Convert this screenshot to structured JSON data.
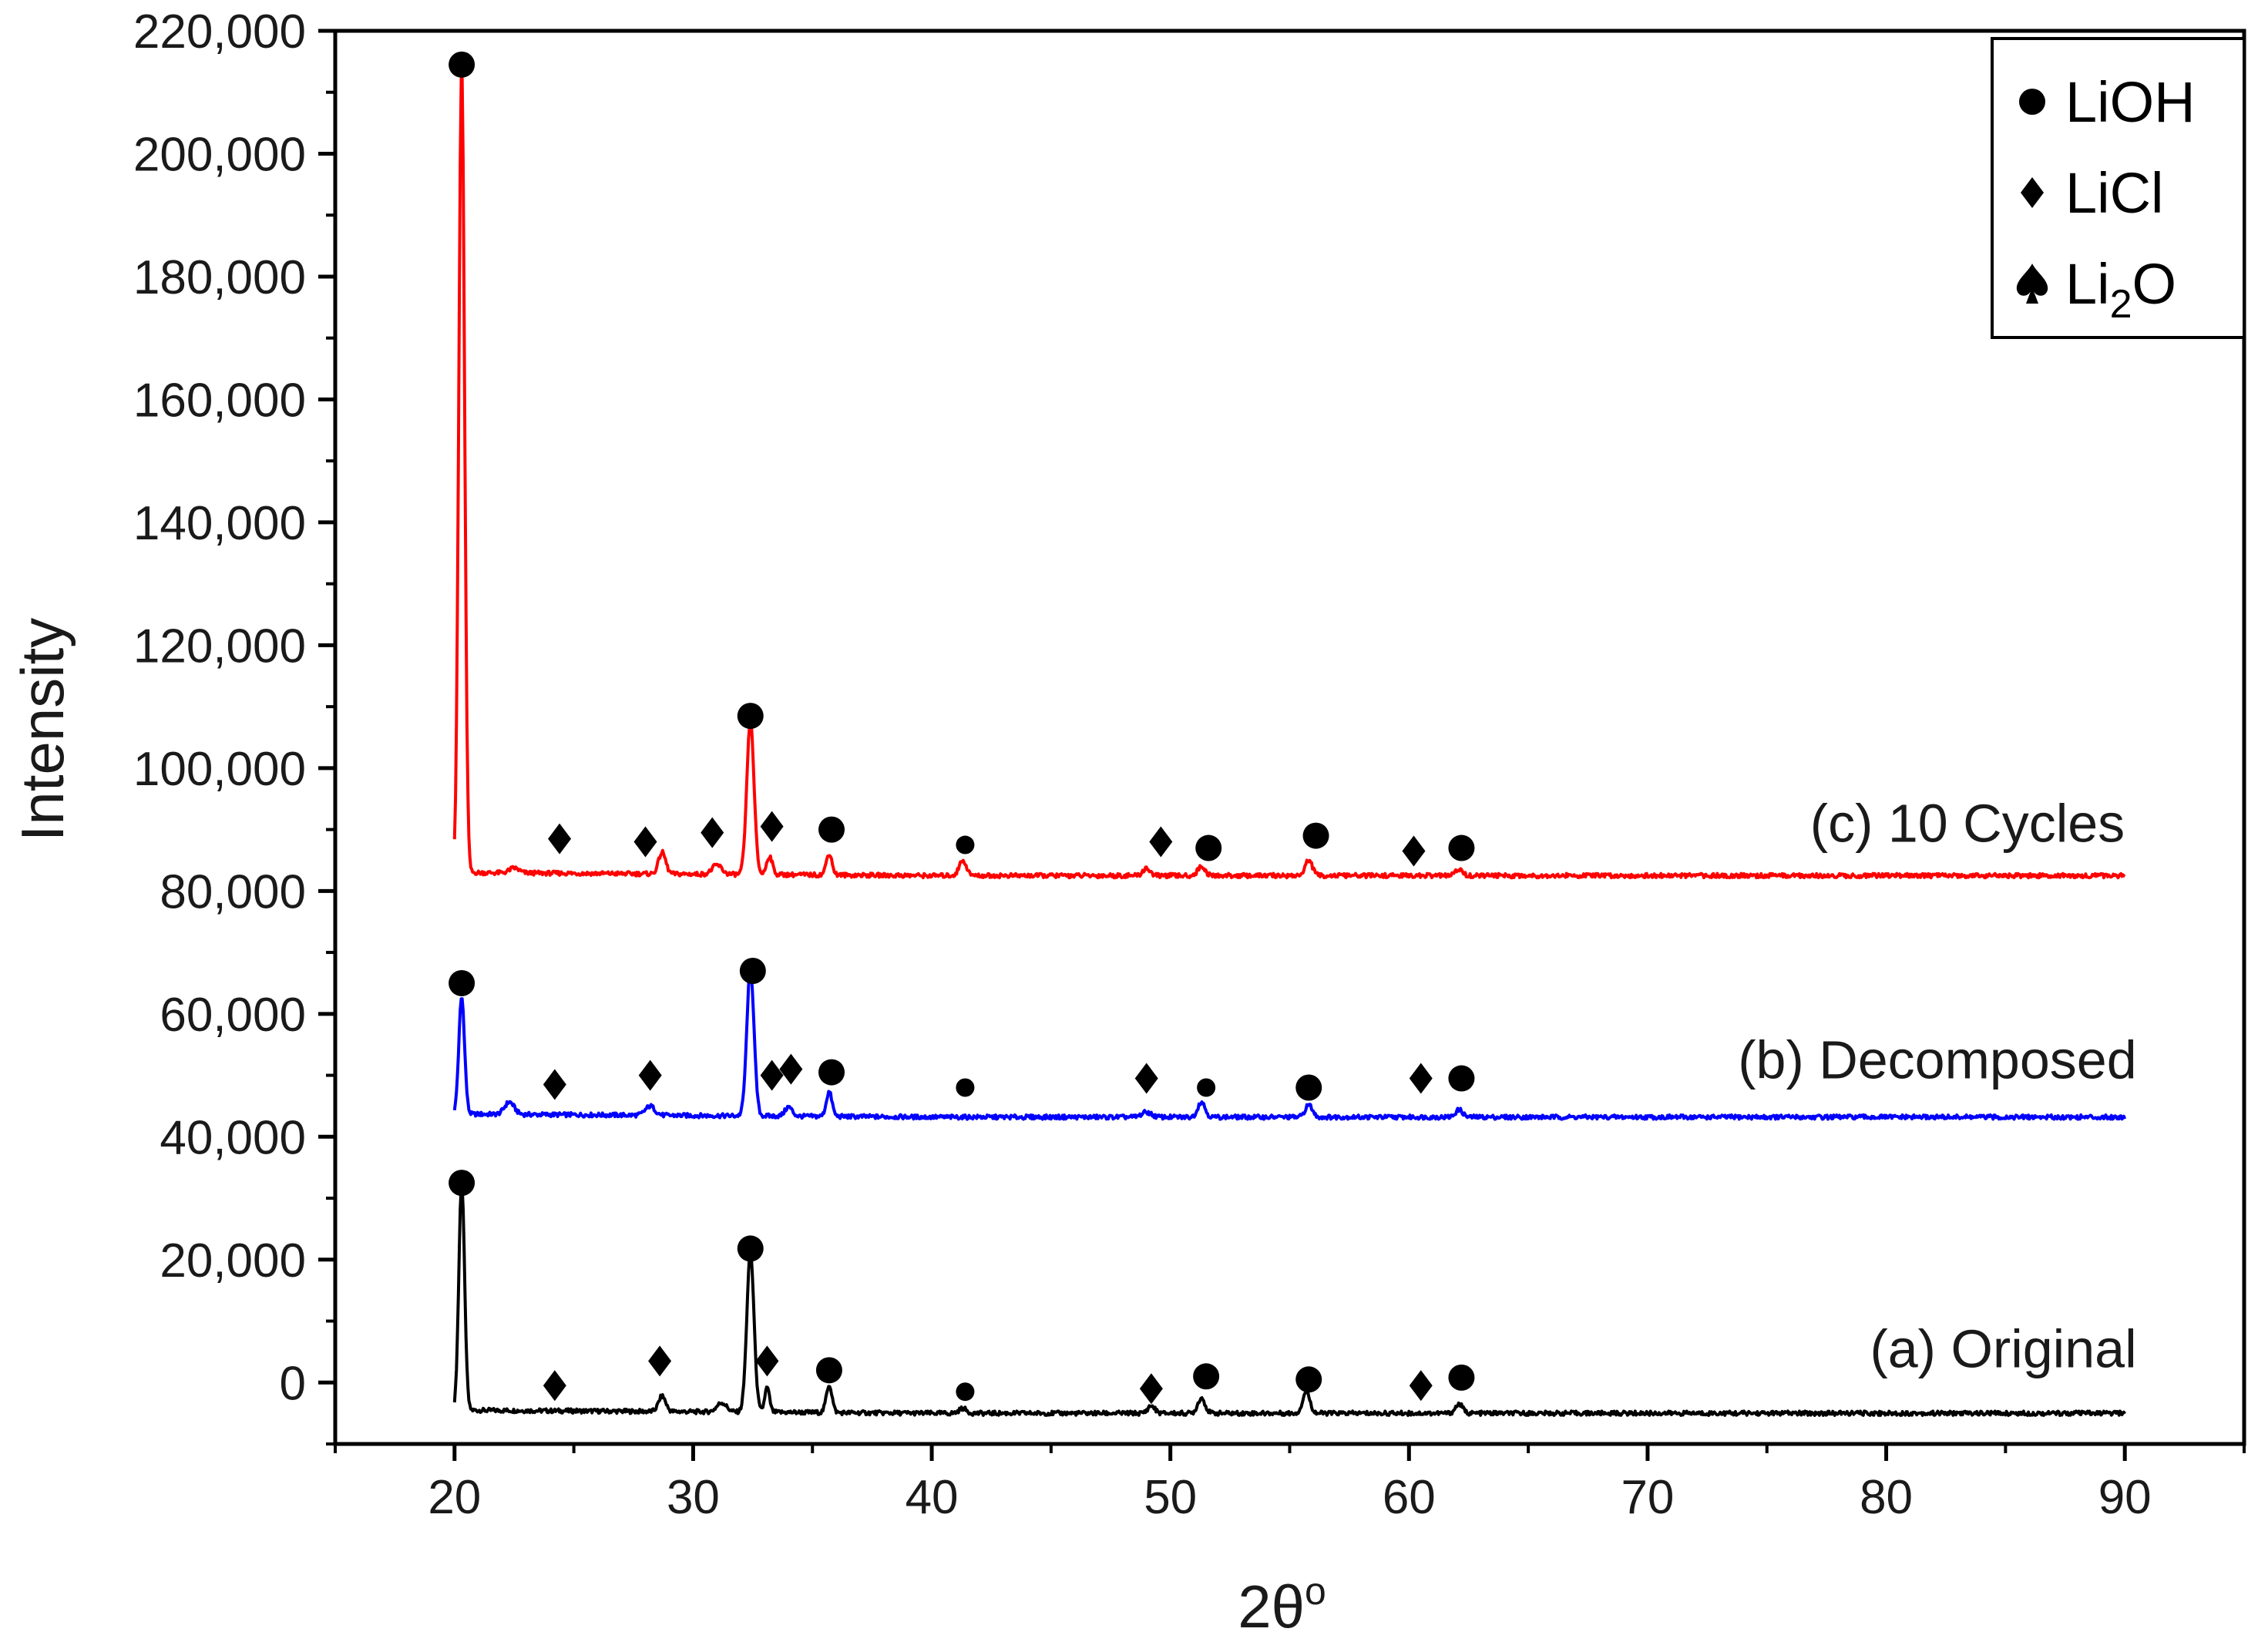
{
  "chart_data": {
    "type": "line",
    "title": "",
    "xlabel": "2θ",
    "xlabel_superscript": "o",
    "ylabel": "Intensity",
    "xlim": [
      15,
      95
    ],
    "ylim": [
      -10000,
      220000
    ],
    "x_ticks": [
      20,
      30,
      40,
      50,
      60,
      70,
      80,
      90
    ],
    "y_ticks": [
      0,
      20000,
      40000,
      60000,
      80000,
      100000,
      120000,
      140000,
      160000,
      180000,
      200000,
      220000
    ],
    "x_tick_labels": [
      "20",
      "30",
      "40",
      "50",
      "60",
      "70",
      "80",
      "90"
    ],
    "y_tick_labels": [
      "0",
      "20,000",
      "40,000",
      "60,000",
      "80,000",
      "100,000",
      "120,000",
      "140,000",
      "160,000",
      "180,000",
      "200,000",
      "220,000"
    ],
    "legend": [
      {
        "symbol": "circle",
        "label": "LiOH",
        "subscript": "",
        "suffix": ""
      },
      {
        "symbol": "diamond",
        "label": "LiCl",
        "subscript": "",
        "suffix": ""
      },
      {
        "symbol": "spade",
        "label": "Li",
        "subscript": "2",
        "suffix": "O"
      }
    ],
    "series": [
      {
        "name": "(a) Original",
        "color": "#000000",
        "baseline": -5000,
        "peaks": [
          [
            20.3,
            37000,
            0.12
          ],
          [
            28.7,
            2500,
            0.15
          ],
          [
            31.2,
            1500,
            0.2
          ],
          [
            32.4,
            26000,
            0.15
          ],
          [
            33.1,
            4000,
            0.1
          ],
          [
            35.7,
            4500,
            0.12
          ],
          [
            41.3,
            800,
            0.15
          ],
          [
            49.2,
            1200,
            0.15
          ],
          [
            51.3,
            2500,
            0.15
          ],
          [
            55.7,
            3500,
            0.15
          ],
          [
            62.1,
            1500,
            0.15
          ]
        ],
        "markers": [
          {
            "x": 20.3,
            "y": 32500,
            "symbol": "circle"
          },
          {
            "x": 24.2,
            "y": -500,
            "symbol": "diamond"
          },
          {
            "x": 28.6,
            "y": 3500,
            "symbol": "diamond"
          },
          {
            "x": 32.4,
            "y": 21800,
            "symbol": "circle"
          },
          {
            "x": 33.1,
            "y": 3500,
            "symbol": "diamond"
          },
          {
            "x": 35.7,
            "y": 2000,
            "symbol": "circle"
          },
          {
            "x": 41.4,
            "y": -1500,
            "symbol": "circle-small"
          },
          {
            "x": 49.2,
            "y": -1000,
            "symbol": "diamond"
          },
          {
            "x": 51.5,
            "y": 1000,
            "symbol": "circle"
          },
          {
            "x": 55.8,
            "y": 500,
            "symbol": "circle"
          },
          {
            "x": 60.5,
            "y": -500,
            "symbol": "diamond"
          },
          {
            "x": 62.2,
            "y": 800,
            "symbol": "circle"
          }
        ]
      },
      {
        "name": "(b) Decomposed",
        "color": "#0000ff",
        "baseline": 43200,
        "peaks": [
          [
            20.3,
            19000,
            0.12
          ],
          [
            22.3,
            2000,
            0.2
          ],
          [
            28.2,
            1500,
            0.2
          ],
          [
            32.4,
            24000,
            0.15
          ],
          [
            34.0,
            1500,
            0.15
          ],
          [
            35.7,
            4000,
            0.12
          ],
          [
            49.0,
            800,
            0.2
          ],
          [
            51.3,
            2500,
            0.15
          ],
          [
            55.8,
            2000,
            0.15
          ],
          [
            62.1,
            1200,
            0.15
          ]
        ],
        "markers": [
          {
            "x": 20.3,
            "y": 65000,
            "symbol": "circle"
          },
          {
            "x": 24.2,
            "y": 48500,
            "symbol": "diamond"
          },
          {
            "x": 28.2,
            "y": 50000,
            "symbol": "diamond"
          },
          {
            "x": 32.5,
            "y": 67000,
            "symbol": "circle"
          },
          {
            "x": 33.3,
            "y": 50000,
            "symbol": "diamond"
          },
          {
            "x": 34.1,
            "y": 51000,
            "symbol": "diamond"
          },
          {
            "x": 35.8,
            "y": 50500,
            "symbol": "circle"
          },
          {
            "x": 41.4,
            "y": 48000,
            "symbol": "circle-small"
          },
          {
            "x": 49.0,
            "y": 49500,
            "symbol": "diamond"
          },
          {
            "x": 51.5,
            "y": 48000,
            "symbol": "circle-small"
          },
          {
            "x": 55.8,
            "y": 48000,
            "symbol": "circle"
          },
          {
            "x": 60.5,
            "y": 49500,
            "symbol": "diamond"
          },
          {
            "x": 62.2,
            "y": 49500,
            "symbol": "circle"
          }
        ]
      },
      {
        "name": "(c) 10 Cycles",
        "color": "#ff0000",
        "baseline": 82500,
        "peaks": [
          [
            20.3,
            131000,
            0.12
          ],
          [
            22.5,
            800,
            0.2
          ],
          [
            28.7,
            3500,
            0.15
          ],
          [
            31.0,
            1500,
            0.2
          ],
          [
            32.4,
            25000,
            0.15
          ],
          [
            33.2,
            3000,
            0.12
          ],
          [
            35.7,
            3500,
            0.12
          ],
          [
            41.3,
            2500,
            0.15
          ],
          [
            49.0,
            1200,
            0.15
          ],
          [
            51.3,
            1500,
            0.15
          ],
          [
            55.8,
            2500,
            0.15
          ],
          [
            62.1,
            1000,
            0.15
          ]
        ],
        "markers": [
          {
            "x": 20.3,
            "y": 214500,
            "symbol": "circle"
          },
          {
            "x": 24.4,
            "y": 88500,
            "symbol": "diamond"
          },
          {
            "x": 28.0,
            "y": 88000,
            "symbol": "diamond"
          },
          {
            "x": 30.8,
            "y": 89500,
            "symbol": "diamond"
          },
          {
            "x": 32.4,
            "y": 108500,
            "symbol": "circle"
          },
          {
            "x": 33.3,
            "y": 90500,
            "symbol": "diamond"
          },
          {
            "x": 35.8,
            "y": 90000,
            "symbol": "circle"
          },
          {
            "x": 41.4,
            "y": 87500,
            "symbol": "circle-small"
          },
          {
            "x": 49.6,
            "y": 88000,
            "symbol": "diamond"
          },
          {
            "x": 51.6,
            "y": 87000,
            "symbol": "circle"
          },
          {
            "x": 56.1,
            "y": 89000,
            "symbol": "circle"
          },
          {
            "x": 60.2,
            "y": 86500,
            "symbol": "diamond"
          },
          {
            "x": 62.2,
            "y": 87000,
            "symbol": "circle"
          }
        ]
      }
    ],
    "series_label_positions": [
      {
        "series": 0,
        "x": 90.5,
        "y": 2500
      },
      {
        "series": 1,
        "x": 90.5,
        "y": 49500
      },
      {
        "series": 2,
        "x": 90.0,
        "y": 88000
      }
    ]
  }
}
